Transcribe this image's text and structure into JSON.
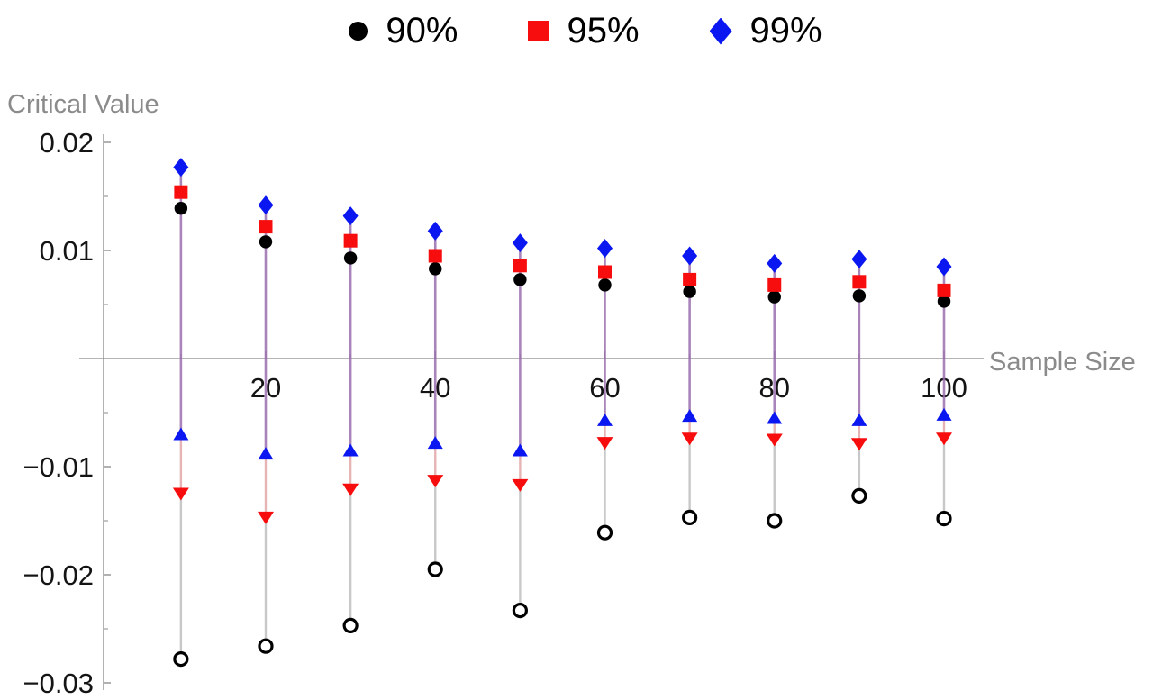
{
  "chart_data": {
    "type": "scatter",
    "title": "",
    "xlabel": "Sample Size",
    "ylabel": "Critical Value",
    "grid": false,
    "legend_position": "top-center",
    "xlim": [
      0,
      105
    ],
    "ylim": [
      -0.031,
      0.021
    ],
    "x": [
      10,
      20,
      30,
      40,
      50,
      60,
      70,
      80,
      90,
      100
    ],
    "xticks": [
      20,
      40,
      60,
      80,
      100
    ],
    "xticks_minor": [
      10,
      30,
      50,
      70,
      90
    ],
    "yticks": [
      0.02,
      0.01,
      -0.01,
      -0.02,
      -0.03
    ],
    "ytick_labels": [
      "0.02",
      "0.01",
      "−0.01",
      "−0.02",
      "−0.03"
    ],
    "yticks_minor": [
      0.015,
      0.005,
      -0.005,
      -0.015,
      -0.025
    ],
    "legend": [
      {
        "label": "90%",
        "marker": "filled-circle",
        "color": "#000000"
      },
      {
        "label": "95%",
        "marker": "filled-square",
        "color": "#f70d0d"
      },
      {
        "label": "99%",
        "marker": "filled-diamond",
        "color": "#0b17f0"
      }
    ],
    "series": [
      {
        "name": "90% upper",
        "marker": "filled-circle",
        "color": "#000000",
        "values": [
          0.0139,
          0.0108,
          0.0093,
          0.0083,
          0.0073,
          0.0068,
          0.0062,
          0.0057,
          0.0058,
          0.0053
        ]
      },
      {
        "name": "95% upper",
        "marker": "filled-square",
        "color": "#f70d0d",
        "values": [
          0.0154,
          0.0122,
          0.0109,
          0.0095,
          0.0086,
          0.008,
          0.0073,
          0.0068,
          0.0071,
          0.0063
        ]
      },
      {
        "name": "99% upper",
        "marker": "filled-diamond",
        "color": "#0b17f0",
        "values": [
          0.0177,
          0.0142,
          0.0132,
          0.0118,
          0.0107,
          0.0102,
          0.0095,
          0.0088,
          0.0092,
          0.0085
        ]
      },
      {
        "name": "99% lower",
        "marker": "filled-triangle-up",
        "color": "#0b17f0",
        "values": [
          -0.007,
          -0.0088,
          -0.0085,
          -0.0078,
          -0.0085,
          -0.0057,
          -0.0053,
          -0.0055,
          -0.0057,
          -0.0052
        ]
      },
      {
        "name": "95% lower",
        "marker": "filled-triangle-down",
        "color": "#f70d0d",
        "values": [
          -0.0125,
          -0.0147,
          -0.0121,
          -0.0113,
          -0.0117,
          -0.0078,
          -0.0074,
          -0.0075,
          -0.0079,
          -0.0074
        ]
      },
      {
        "name": "90% lower",
        "marker": "open-circle",
        "color": "#000000",
        "values": [
          -0.0278,
          -0.0266,
          -0.0247,
          -0.0195,
          -0.0233,
          -0.0161,
          -0.0147,
          -0.015,
          -0.0127,
          -0.0148
        ]
      }
    ],
    "stems": true,
    "colors": {
      "axis": "#898989",
      "tick_text": "#141414",
      "label_gray": "#8b8b8b",
      "stem_upper": "#9a6fae",
      "stem_mid": "#d98c8c",
      "stem_lower": "#c8c8c8"
    }
  }
}
